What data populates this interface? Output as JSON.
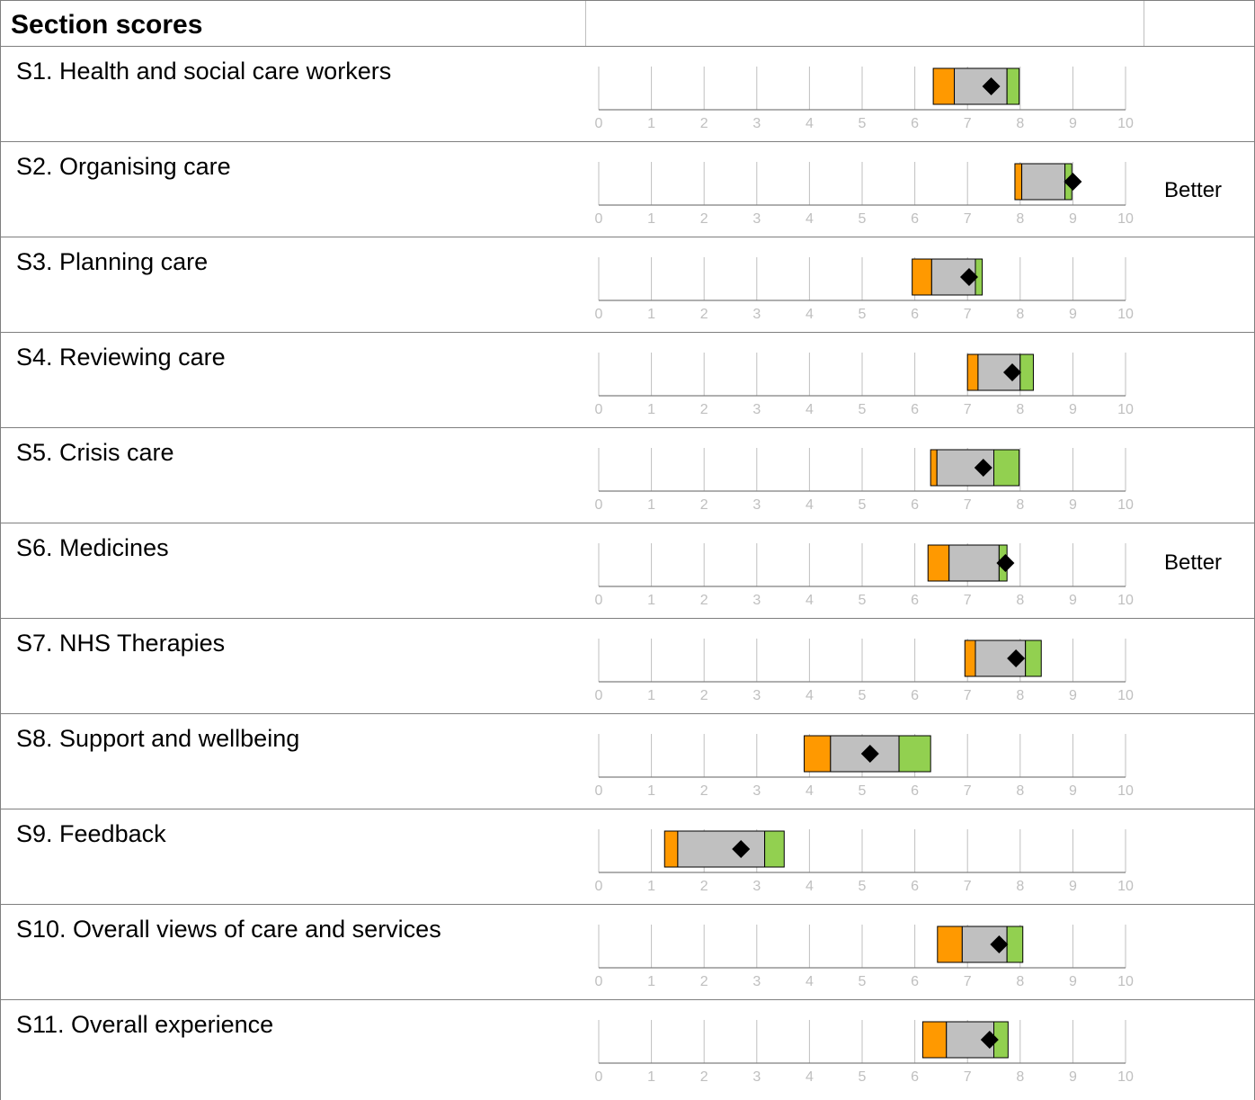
{
  "title": "Section scores",
  "colors": {
    "lowest_band": "#ff9900",
    "middle_band": "#c0c0c0",
    "highest_band": "#92d050",
    "score_marker": "#000000",
    "axis": "#7f7f7f",
    "gridline": "#bfbfbf",
    "tick_label": "#bfbfbf"
  },
  "chart_data": {
    "type": "range",
    "title": "Section scores",
    "xlim": [
      0,
      10
    ],
    "ticks": [
      "0",
      "1",
      "2",
      "3",
      "4",
      "5",
      "6",
      "7",
      "8",
      "9",
      "10"
    ],
    "grid": true,
    "rows": [
      {
        "label": "S1. Health and social care workers",
        "min": 6.35,
        "lower": 6.75,
        "upper": 7.75,
        "max": 7.98,
        "score": 7.45,
        "result": ""
      },
      {
        "label": "S2. Organising care",
        "min": 7.9,
        "lower": 8.03,
        "upper": 8.85,
        "max": 8.98,
        "score": 9.0,
        "result": "Better"
      },
      {
        "label": "S3. Planning care",
        "min": 5.95,
        "lower": 6.32,
        "upper": 7.15,
        "max": 7.28,
        "score": 7.03,
        "result": ""
      },
      {
        "label": "S4. Reviewing care",
        "min": 7.0,
        "lower": 7.2,
        "upper": 8.0,
        "max": 8.25,
        "score": 7.85,
        "result": ""
      },
      {
        "label": "S5. Crisis care",
        "min": 6.3,
        "lower": 6.42,
        "upper": 7.5,
        "max": 7.98,
        "score": 7.3,
        "result": ""
      },
      {
        "label": "S6. Medicines",
        "min": 6.25,
        "lower": 6.65,
        "upper": 7.6,
        "max": 7.75,
        "score": 7.72,
        "result": "Better"
      },
      {
        "label": "S7. NHS Therapies",
        "min": 6.95,
        "lower": 7.15,
        "upper": 8.1,
        "max": 8.4,
        "score": 7.92,
        "result": ""
      },
      {
        "label": "S8. Support and wellbeing",
        "min": 3.9,
        "lower": 4.4,
        "upper": 5.7,
        "max": 6.3,
        "score": 5.15,
        "result": ""
      },
      {
        "label": "S9. Feedback",
        "min": 1.25,
        "lower": 1.5,
        "upper": 3.15,
        "max": 3.52,
        "score": 2.7,
        "result": ""
      },
      {
        "label": "S10. Overall views of care and services",
        "min": 6.43,
        "lower": 6.9,
        "upper": 7.75,
        "max": 8.05,
        "score": 7.6,
        "result": ""
      },
      {
        "label": "S11. Overall experience",
        "min": 6.15,
        "lower": 6.6,
        "upper": 7.5,
        "max": 7.77,
        "score": 7.42,
        "result": ""
      }
    ]
  }
}
